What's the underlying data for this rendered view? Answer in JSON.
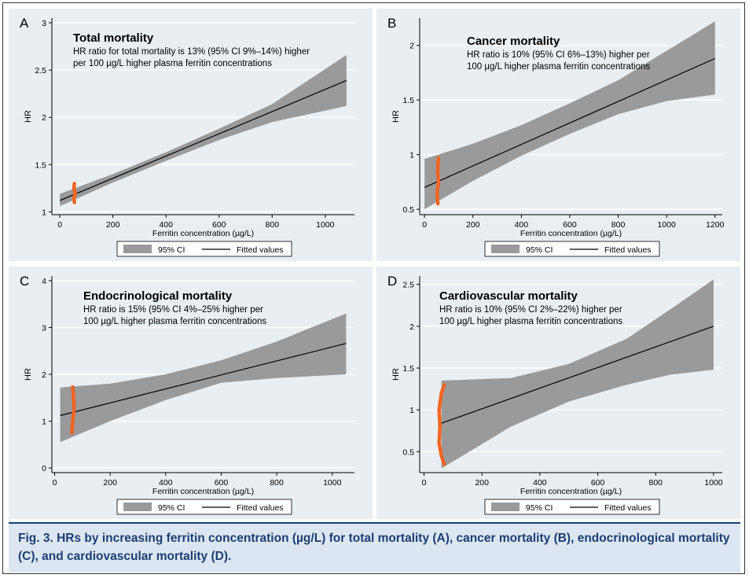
{
  "colors": {
    "panel_bg": "#e9eef2",
    "ci_band": "#9a9a9a",
    "fitted_line": "#000000",
    "ferritin_marker": "#f26522",
    "caption_bg": "#dce6f2",
    "caption_text": "#1a3f73"
  },
  "caption": {
    "label": "Fig. 3.",
    "text": "HRs by increasing ferritin concentration (µg/L) for total mortality (A), cancer mortality (B), endocrinological mortality (C), and cardiovascular mortality (D)."
  },
  "chart_data": [
    {
      "panel_letter": "A",
      "type": "line",
      "title": "Total mortality",
      "annotation": [
        "HR ratio for total mortality is 13% (95% CI 9%–14%) higher",
        "per 100 µg/L higher plasma ferritin concentrations"
      ],
      "xlabel": "Ferritin concentration (µg/L)",
      "ylabel": "HR",
      "xlim": [
        -30,
        1110
      ],
      "ylim": [
        0.97,
        3.05
      ],
      "xticks": [
        0,
        200,
        400,
        600,
        800,
        1000
      ],
      "xtick_labels": [
        "0",
        "200",
        "400",
        "600",
        "800",
        "1000"
      ],
      "yticks": [
        1,
        1.5,
        2,
        2.5,
        3
      ],
      "ytick_labels": [
        "1",
        "1.5",
        "2",
        "2.5",
        "3"
      ],
      "fitted": {
        "x": [
          0,
          1080
        ],
        "y": [
          1.12,
          2.39
        ]
      },
      "ci_upper": {
        "x": [
          0,
          200,
          400,
          600,
          800,
          1080
        ],
        "y": [
          1.19,
          1.4,
          1.63,
          1.88,
          2.14,
          2.66
        ]
      },
      "ci_lower": {
        "x": [
          0,
          200,
          400,
          600,
          800,
          1080
        ],
        "y": [
          1.06,
          1.31,
          1.54,
          1.76,
          1.95,
          2.12
        ]
      },
      "marker": {
        "x": [
          55,
          53,
          58,
          53,
          55
        ],
        "y": [
          1.1,
          1.15,
          1.2,
          1.25,
          1.3
        ]
      },
      "legend": {
        "ci": "95% CI",
        "fitted": "Fitted values"
      }
    },
    {
      "panel_letter": "B",
      "type": "line",
      "title": "Cancer mortality",
      "annotation": [
        "HR ratio is 10% (95% CI 6%–13%) higher per",
        "100 µg/L higher plasma ferritin concentrations"
      ],
      "xlabel": "Ferritin concentration (µg/L)",
      "ylabel": "HR",
      "xlim": [
        -20,
        1230
      ],
      "ylim": [
        0.45,
        2.25
      ],
      "xticks": [
        0,
        200,
        400,
        600,
        800,
        1000,
        1200
      ],
      "xtick_labels": [
        "0",
        "200",
        "400",
        "600",
        "800",
        "1000",
        "1200"
      ],
      "yticks": [
        0.5,
        1,
        1.5,
        2
      ],
      "ytick_labels": [
        "0.5",
        "1",
        "1.5",
        "2"
      ],
      "fitted": {
        "x": [
          0,
          1200
        ],
        "y": [
          0.7,
          1.88
        ]
      },
      "ci_upper": {
        "x": [
          0,
          200,
          400,
          600,
          800,
          1000,
          1200
        ],
        "y": [
          0.96,
          1.1,
          1.27,
          1.47,
          1.68,
          1.95,
          2.22
        ]
      },
      "ci_lower": {
        "x": [
          0,
          200,
          400,
          600,
          800,
          1000,
          1200
        ],
        "y": [
          0.5,
          0.76,
          0.99,
          1.19,
          1.37,
          1.49,
          1.55
        ]
      },
      "marker": {
        "x": [
          55,
          52,
          58,
          54,
          57
        ],
        "y": [
          0.55,
          0.65,
          0.75,
          0.85,
          0.97
        ]
      },
      "legend": {
        "ci": "95% CI",
        "fitted": "Fitted values"
      }
    },
    {
      "panel_letter": "C",
      "type": "line",
      "title": "Endocrinological mortality",
      "annotation": [
        "HR ratio is 15% (95% CI 4%–25% higher per",
        "100 µg/L higher plasma ferritin concentrations"
      ],
      "xlabel": "Ferritin concentration (µg/L)",
      "ylabel": "HR",
      "xlim": [
        -10,
        1080
      ],
      "ylim": [
        -0.1,
        4.1
      ],
      "xticks": [
        0,
        200,
        400,
        600,
        800,
        1000
      ],
      "xtick_labels": [
        "0",
        "200",
        "400",
        "600",
        "800",
        "1000"
      ],
      "yticks": [
        0,
        1,
        2,
        3,
        4
      ],
      "ytick_labels": [
        "0",
        "1",
        "2",
        "3",
        "4"
      ],
      "fitted": {
        "x": [
          20,
          1050
        ],
        "y": [
          1.12,
          2.66
        ]
      },
      "ci_upper": {
        "x": [
          20,
          200,
          400,
          600,
          800,
          1050
        ],
        "y": [
          1.72,
          1.8,
          2.0,
          2.3,
          2.7,
          3.3
        ]
      },
      "ci_lower": {
        "x": [
          20,
          200,
          400,
          600,
          800,
          1050
        ],
        "y": [
          0.55,
          1.0,
          1.45,
          1.82,
          1.92,
          2.0
        ]
      },
      "marker": {
        "x": [
          62,
          65,
          70,
          68,
          65
        ],
        "y": [
          0.75,
          1.0,
          1.25,
          1.5,
          1.73
        ]
      },
      "legend": {
        "ci": "95% CI",
        "fitted": "Fitted values"
      }
    },
    {
      "panel_letter": "D",
      "type": "line",
      "title": "Cardiovascular mortality",
      "annotation": [
        "HR ratio is 10% (95% CI 2%–22%) higher per",
        "100 µg/L higher plasma ferritin concentrations"
      ],
      "xlabel": "Ferritin concentration (µg/L)",
      "ylabel": "HR",
      "xlim": [
        -15,
        1030
      ],
      "ylim": [
        0.25,
        2.6
      ],
      "xticks": [
        0,
        200,
        400,
        600,
        800,
        1000
      ],
      "xtick_labels": [
        "0",
        "200",
        "400",
        "600",
        "800",
        "1000"
      ],
      "yticks": [
        0.5,
        1,
        1.5,
        2,
        2.5
      ],
      "ytick_labels": [
        "0.5",
        "1",
        "1.5",
        "2",
        "2.5"
      ],
      "fitted": {
        "x": [
          60,
          1000
        ],
        "y": [
          0.84,
          2.0
        ]
      },
      "ci_upper": {
        "x": [
          60,
          300,
          500,
          700,
          850,
          1000
        ],
        "y": [
          1.35,
          1.38,
          1.55,
          1.85,
          2.2,
          2.56
        ]
      },
      "ci_lower": {
        "x": [
          60,
          300,
          500,
          700,
          850,
          1000
        ],
        "y": [
          0.3,
          0.8,
          1.1,
          1.3,
          1.42,
          1.48
        ]
      },
      "marker": {
        "x": [
          70,
          60,
          52,
          55,
          52,
          60,
          70
        ],
        "y": [
          0.35,
          0.45,
          0.6,
          0.8,
          1.0,
          1.2,
          1.3
        ]
      },
      "legend": {
        "ci": "95% CI",
        "fitted": "Fitted values"
      }
    }
  ]
}
